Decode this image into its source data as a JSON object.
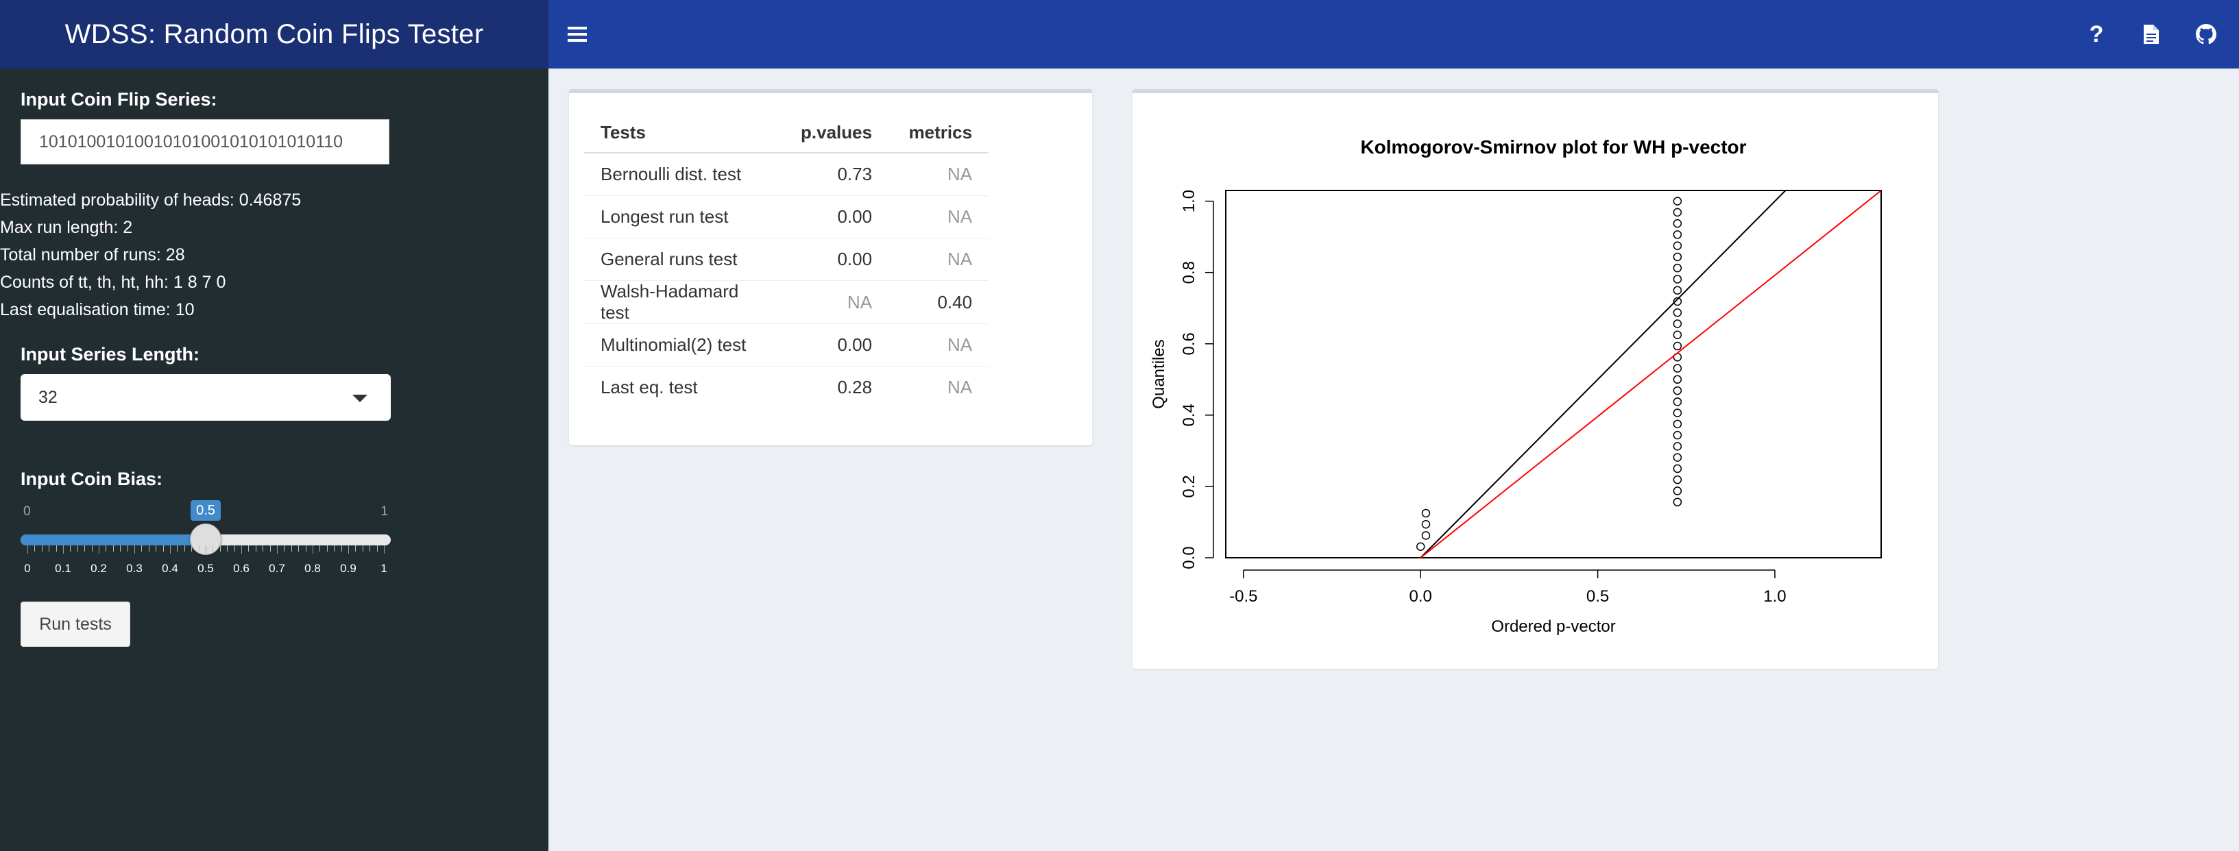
{
  "app": {
    "title": "WDSS: Random Coin Flips Tester"
  },
  "navbar": {
    "menu_icon": "hamburger-icon",
    "right_icons": [
      "question-icon",
      "document-icon",
      "github-icon"
    ]
  },
  "sidebar": {
    "flip_series": {
      "label": "Input Coin Flip Series:",
      "value": "10101001010010101001010101010110"
    },
    "stats": [
      "Estimated probability of heads: 0.46875",
      "Max run length: 2",
      "Total number of runs: 28",
      "Counts of tt, th, ht, hh: 1 8 7 0",
      "Last equalisation time: 10"
    ],
    "series_length": {
      "label": "Input Series Length:",
      "selected": "32"
    },
    "coin_bias": {
      "label": "Input Coin Bias:",
      "min_label": "0",
      "max_label": "1",
      "value_label": "0.5",
      "value": 0.5,
      "tick_labels": [
        "0",
        "0.1",
        "0.2",
        "0.3",
        "0.4",
        "0.5",
        "0.6",
        "0.7",
        "0.8",
        "0.9",
        "1"
      ]
    },
    "run_button": "Run tests"
  },
  "results_table": {
    "headers": [
      "Tests",
      "p.values",
      "metrics"
    ],
    "rows": [
      [
        "Bernoulli dist. test",
        "0.73",
        "NA"
      ],
      [
        "Longest run test",
        "0.00",
        "NA"
      ],
      [
        "General runs test",
        "0.00",
        "NA"
      ],
      [
        "Walsh-Hadamard test",
        "NA",
        "0.40"
      ],
      [
        "Multinomial(2) test",
        "0.00",
        "NA"
      ],
      [
        "Last eq. test",
        "0.28",
        "NA"
      ]
    ]
  },
  "chart_data": {
    "type": "scatter",
    "title": "Kolmogorov-Smirnov plot for WH p-vector",
    "xlabel": "Ordered p-vector",
    "ylabel": "Quantiles",
    "xlim": [
      -0.55,
      1.3
    ],
    "ylim": [
      0.0,
      1.03
    ],
    "xticks": [
      -0.5,
      0.0,
      0.5,
      1.0
    ],
    "xtick_labels": [
      "-0.5",
      "0.0",
      "0.5",
      "1.0"
    ],
    "yticks": [
      0.0,
      0.2,
      0.4,
      0.6,
      0.8,
      1.0
    ],
    "ytick_labels": [
      "0.0",
      "0.2",
      "0.4",
      "0.6",
      "0.8",
      "1.0"
    ],
    "series": [
      {
        "name": "p-vector points",
        "style": "open-circle",
        "x": [
          0.0,
          0.015,
          0.015,
          0.015,
          0.725,
          0.725,
          0.725,
          0.725,
          0.725,
          0.725,
          0.725,
          0.725,
          0.725,
          0.725,
          0.725,
          0.725,
          0.725,
          0.725,
          0.725,
          0.725,
          0.725,
          0.725,
          0.725,
          0.725,
          0.725,
          0.725,
          0.725,
          0.725,
          0.725,
          0.725,
          0.725,
          0.725
        ],
        "y": [
          0.03125,
          0.0625,
          0.09375,
          0.125,
          0.15625,
          0.1875,
          0.21875,
          0.25,
          0.28125,
          0.3125,
          0.34375,
          0.375,
          0.40625,
          0.4375,
          0.46875,
          0.5,
          0.53125,
          0.5625,
          0.59375,
          0.625,
          0.65625,
          0.6875,
          0.71875,
          0.75,
          0.78125,
          0.8125,
          0.84375,
          0.875,
          0.90625,
          0.9375,
          0.96875,
          1.0
        ]
      },
      {
        "name": "black line",
        "style": "line",
        "color": "#000000",
        "x": [
          0.0,
          1.03
        ],
        "y": [
          0.0,
          1.03
        ]
      },
      {
        "name": "red line",
        "style": "line",
        "color": "#ff0000",
        "x": [
          0.0,
          1.3
        ],
        "y": [
          0.0,
          1.03
        ]
      }
    ]
  }
}
